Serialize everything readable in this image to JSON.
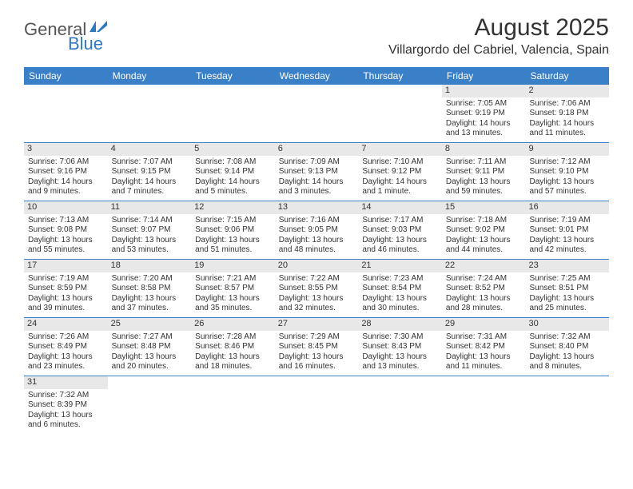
{
  "logo": {
    "text1": "General",
    "text2": "Blue"
  },
  "title": "August 2025",
  "location": "Villargordo del Cabriel, Valencia, Spain",
  "colors": {
    "header_bg": "#3a80c8",
    "header_text": "#ffffff",
    "daynum_bg": "#e8e8e8",
    "border": "#3a80c8",
    "body_text": "#333333",
    "logo_gray": "#555555",
    "logo_blue": "#2f78c4"
  },
  "day_names": [
    "Sunday",
    "Monday",
    "Tuesday",
    "Wednesday",
    "Thursday",
    "Friday",
    "Saturday"
  ],
  "weeks": [
    [
      {
        "day": "",
        "lines": []
      },
      {
        "day": "",
        "lines": []
      },
      {
        "day": "",
        "lines": []
      },
      {
        "day": "",
        "lines": []
      },
      {
        "day": "",
        "lines": []
      },
      {
        "day": "1",
        "lines": [
          "Sunrise: 7:05 AM",
          "Sunset: 9:19 PM",
          "Daylight: 14 hours and 13 minutes."
        ]
      },
      {
        "day": "2",
        "lines": [
          "Sunrise: 7:06 AM",
          "Sunset: 9:18 PM",
          "Daylight: 14 hours and 11 minutes."
        ]
      }
    ],
    [
      {
        "day": "3",
        "lines": [
          "Sunrise: 7:06 AM",
          "Sunset: 9:16 PM",
          "Daylight: 14 hours and 9 minutes."
        ]
      },
      {
        "day": "4",
        "lines": [
          "Sunrise: 7:07 AM",
          "Sunset: 9:15 PM",
          "Daylight: 14 hours and 7 minutes."
        ]
      },
      {
        "day": "5",
        "lines": [
          "Sunrise: 7:08 AM",
          "Sunset: 9:14 PM",
          "Daylight: 14 hours and 5 minutes."
        ]
      },
      {
        "day": "6",
        "lines": [
          "Sunrise: 7:09 AM",
          "Sunset: 9:13 PM",
          "Daylight: 14 hours and 3 minutes."
        ]
      },
      {
        "day": "7",
        "lines": [
          "Sunrise: 7:10 AM",
          "Sunset: 9:12 PM",
          "Daylight: 14 hours and 1 minute."
        ]
      },
      {
        "day": "8",
        "lines": [
          "Sunrise: 7:11 AM",
          "Sunset: 9:11 PM",
          "Daylight: 13 hours and 59 minutes."
        ]
      },
      {
        "day": "9",
        "lines": [
          "Sunrise: 7:12 AM",
          "Sunset: 9:10 PM",
          "Daylight: 13 hours and 57 minutes."
        ]
      }
    ],
    [
      {
        "day": "10",
        "lines": [
          "Sunrise: 7:13 AM",
          "Sunset: 9:08 PM",
          "Daylight: 13 hours and 55 minutes."
        ]
      },
      {
        "day": "11",
        "lines": [
          "Sunrise: 7:14 AM",
          "Sunset: 9:07 PM",
          "Daylight: 13 hours and 53 minutes."
        ]
      },
      {
        "day": "12",
        "lines": [
          "Sunrise: 7:15 AM",
          "Sunset: 9:06 PM",
          "Daylight: 13 hours and 51 minutes."
        ]
      },
      {
        "day": "13",
        "lines": [
          "Sunrise: 7:16 AM",
          "Sunset: 9:05 PM",
          "Daylight: 13 hours and 48 minutes."
        ]
      },
      {
        "day": "14",
        "lines": [
          "Sunrise: 7:17 AM",
          "Sunset: 9:03 PM",
          "Daylight: 13 hours and 46 minutes."
        ]
      },
      {
        "day": "15",
        "lines": [
          "Sunrise: 7:18 AM",
          "Sunset: 9:02 PM",
          "Daylight: 13 hours and 44 minutes."
        ]
      },
      {
        "day": "16",
        "lines": [
          "Sunrise: 7:19 AM",
          "Sunset: 9:01 PM",
          "Daylight: 13 hours and 42 minutes."
        ]
      }
    ],
    [
      {
        "day": "17",
        "lines": [
          "Sunrise: 7:19 AM",
          "Sunset: 8:59 PM",
          "Daylight: 13 hours and 39 minutes."
        ]
      },
      {
        "day": "18",
        "lines": [
          "Sunrise: 7:20 AM",
          "Sunset: 8:58 PM",
          "Daylight: 13 hours and 37 minutes."
        ]
      },
      {
        "day": "19",
        "lines": [
          "Sunrise: 7:21 AM",
          "Sunset: 8:57 PM",
          "Daylight: 13 hours and 35 minutes."
        ]
      },
      {
        "day": "20",
        "lines": [
          "Sunrise: 7:22 AM",
          "Sunset: 8:55 PM",
          "Daylight: 13 hours and 32 minutes."
        ]
      },
      {
        "day": "21",
        "lines": [
          "Sunrise: 7:23 AM",
          "Sunset: 8:54 PM",
          "Daylight: 13 hours and 30 minutes."
        ]
      },
      {
        "day": "22",
        "lines": [
          "Sunrise: 7:24 AM",
          "Sunset: 8:52 PM",
          "Daylight: 13 hours and 28 minutes."
        ]
      },
      {
        "day": "23",
        "lines": [
          "Sunrise: 7:25 AM",
          "Sunset: 8:51 PM",
          "Daylight: 13 hours and 25 minutes."
        ]
      }
    ],
    [
      {
        "day": "24",
        "lines": [
          "Sunrise: 7:26 AM",
          "Sunset: 8:49 PM",
          "Daylight: 13 hours and 23 minutes."
        ]
      },
      {
        "day": "25",
        "lines": [
          "Sunrise: 7:27 AM",
          "Sunset: 8:48 PM",
          "Daylight: 13 hours and 20 minutes."
        ]
      },
      {
        "day": "26",
        "lines": [
          "Sunrise: 7:28 AM",
          "Sunset: 8:46 PM",
          "Daylight: 13 hours and 18 minutes."
        ]
      },
      {
        "day": "27",
        "lines": [
          "Sunrise: 7:29 AM",
          "Sunset: 8:45 PM",
          "Daylight: 13 hours and 16 minutes."
        ]
      },
      {
        "day": "28",
        "lines": [
          "Sunrise: 7:30 AM",
          "Sunset: 8:43 PM",
          "Daylight: 13 hours and 13 minutes."
        ]
      },
      {
        "day": "29",
        "lines": [
          "Sunrise: 7:31 AM",
          "Sunset: 8:42 PM",
          "Daylight: 13 hours and 11 minutes."
        ]
      },
      {
        "day": "30",
        "lines": [
          "Sunrise: 7:32 AM",
          "Sunset: 8:40 PM",
          "Daylight: 13 hours and 8 minutes."
        ]
      }
    ],
    [
      {
        "day": "31",
        "lines": [
          "Sunrise: 7:32 AM",
          "Sunset: 8:39 PM",
          "Daylight: 13 hours and 6 minutes."
        ]
      },
      {
        "day": "",
        "lines": []
      },
      {
        "day": "",
        "lines": []
      },
      {
        "day": "",
        "lines": []
      },
      {
        "day": "",
        "lines": []
      },
      {
        "day": "",
        "lines": []
      },
      {
        "day": "",
        "lines": []
      }
    ]
  ]
}
